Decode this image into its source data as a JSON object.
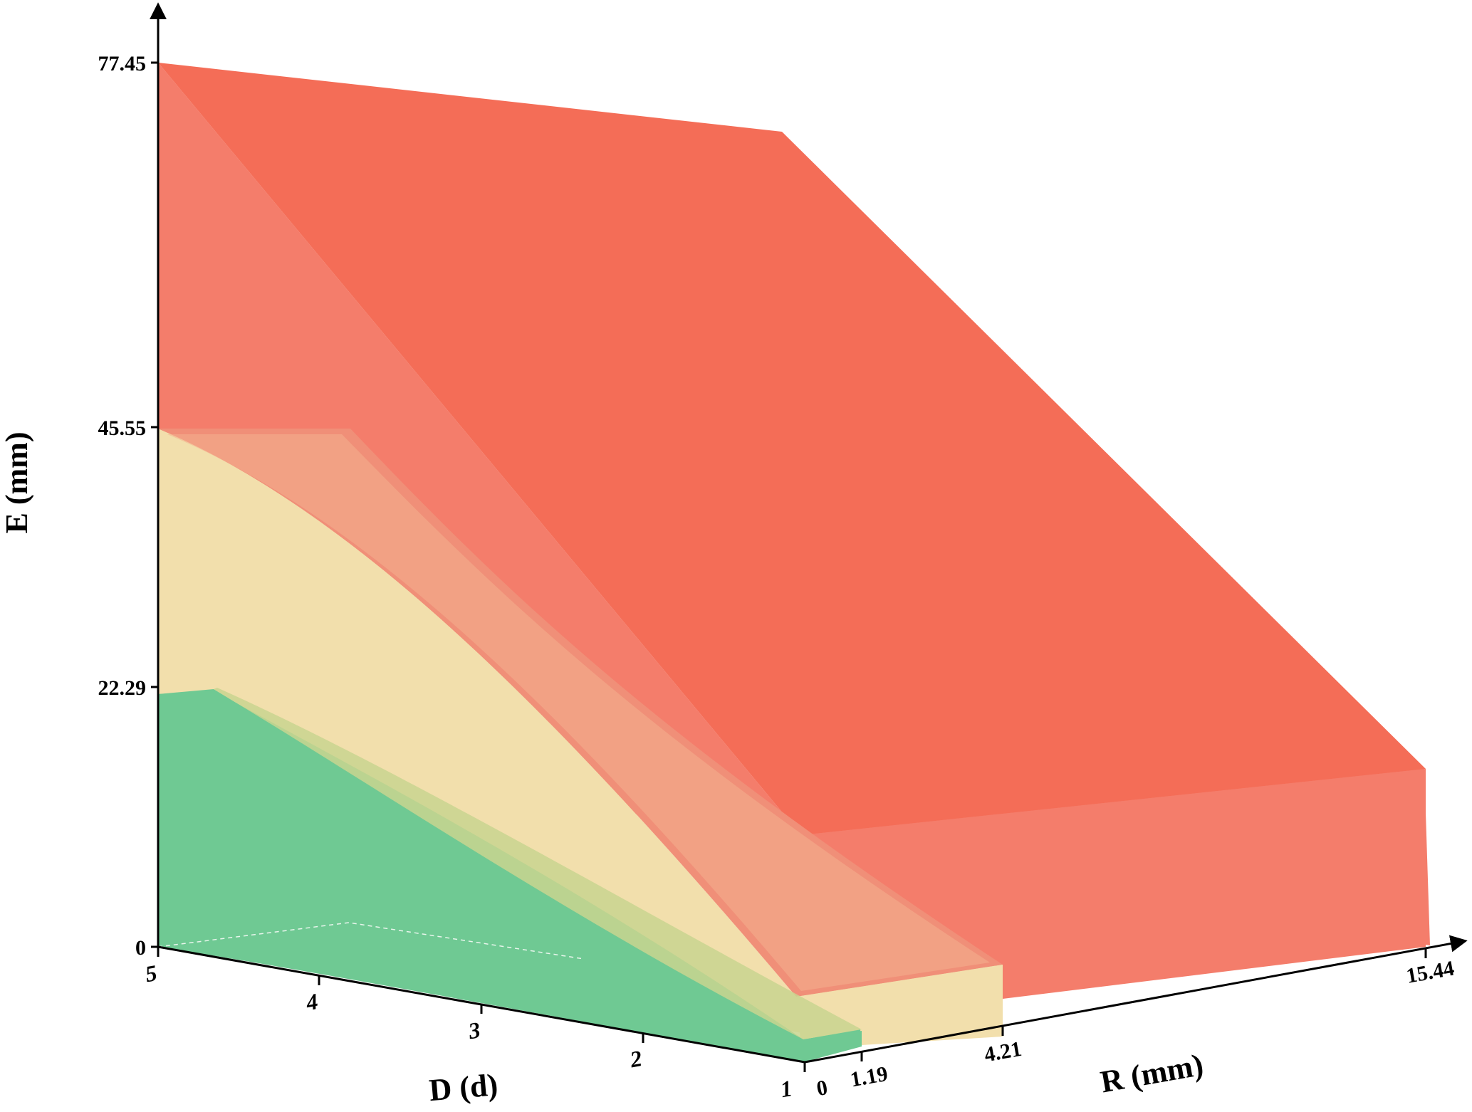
{
  "chart_data": {
    "type": "3d-region",
    "axes": {
      "z": {
        "label": "E (mm)",
        "ticks": [
          "0",
          "22.29",
          "45.55",
          "77.45"
        ]
      },
      "d": {
        "label": "D (d)",
        "ticks": [
          "5",
          "4",
          "3",
          "2",
          "1"
        ]
      },
      "r": {
        "label": "R (mm)",
        "ticks": [
          "0",
          "1.19",
          "4.21",
          "15.44"
        ]
      }
    },
    "regions": [
      {
        "color": "#6fc993",
        "r_max": 1.19,
        "e_at_d5": 22.29,
        "e_at_d1": 0
      },
      {
        "color": "#f2dfac",
        "r_max": 4.21,
        "e_at_d5": 45.55,
        "e_at_d1": 0
      },
      {
        "color": "#f4705a",
        "r_max": 15.44,
        "e_at_d5": 77.45,
        "e_at_d1": 22.29
      }
    ],
    "grid": false,
    "legend": "none"
  }
}
